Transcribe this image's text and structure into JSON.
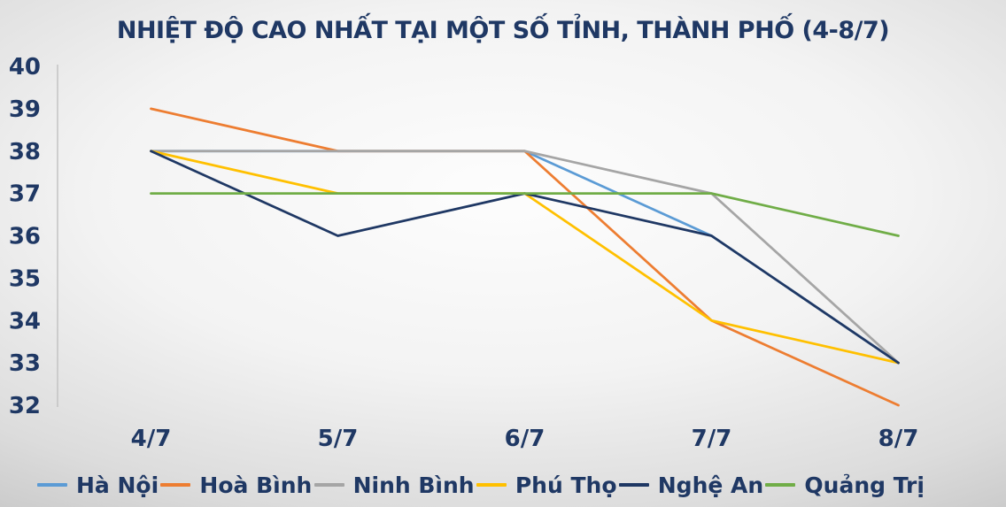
{
  "chart_data": {
    "type": "line",
    "title": "NHIỆT ĐỘ CAO NHẤT TẠI MỘT SỐ TỈNH, THÀNH PHỐ (4-8/7)",
    "title_color": "#1F3864",
    "axis_label_color": "#1F3864",
    "axis_line_color": "#C3C3C3",
    "categories": [
      "4/7",
      "5/7",
      "6/7",
      "7/7",
      "8/7"
    ],
    "y_ticks": [
      40,
      39,
      38,
      37,
      36,
      35,
      34,
      33,
      32
    ],
    "ylim": [
      32,
      40
    ],
    "xlabel": "",
    "ylabel": "",
    "grid": false,
    "legend_position": "bottom",
    "series": [
      {
        "name": "Hà Nội",
        "color": "#5B9BD5",
        "values": [
          38,
          38,
          38,
          36,
          33
        ]
      },
      {
        "name": "Hoà Bình",
        "color": "#ED7D31",
        "values": [
          39,
          38,
          38,
          34,
          32
        ]
      },
      {
        "name": "Ninh Bình",
        "color": "#A5A5A5",
        "values": [
          38,
          38,
          38,
          37,
          33
        ]
      },
      {
        "name": "Phú Thọ",
        "color": "#FFC000",
        "values": [
          38,
          37,
          37,
          34,
          33
        ]
      },
      {
        "name": "Nghệ An",
        "color": "#1F3864",
        "values": [
          38,
          36,
          37,
          36,
          33
        ]
      },
      {
        "name": "Quảng Trị",
        "color": "#70AD47",
        "values": [
          37,
          37,
          37,
          37,
          36
        ]
      }
    ]
  }
}
